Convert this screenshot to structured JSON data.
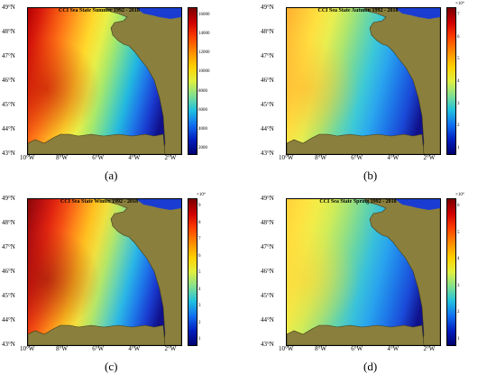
{
  "panels": [
    {
      "id": "a",
      "title": "CCI Sea State  Summer 1992 - 2018",
      "caption": "(a)",
      "colorbar_ticks": [
        "16000",
        "14000",
        "12000",
        "10000",
        "8000",
        "6000",
        "4000",
        "2000"
      ],
      "colorbar_exponent": "",
      "palette": "summer"
    },
    {
      "id": "b",
      "title": "CCI Sea State  Autumn 1992 - 2018",
      "caption": "(b)",
      "colorbar_ticks": [
        "7",
        "6",
        "5",
        "4",
        "3",
        "2",
        "1"
      ],
      "colorbar_exponent": "×10⁴",
      "palette": "autumn"
    },
    {
      "id": "c",
      "title": "CCI Sea State  Winter 1992 - 2018",
      "caption": "(c)",
      "colorbar_ticks": [
        "9",
        "8",
        "7",
        "6",
        "5",
        "4",
        "3",
        "2",
        "1"
      ],
      "colorbar_exponent": "×10⁴",
      "palette": "winter"
    },
    {
      "id": "d",
      "title": "CCI Sea State  Spring 1992 - 2018",
      "caption": "(d)",
      "colorbar_ticks": [
        "6",
        "5",
        "4",
        "3",
        "2",
        "1"
      ],
      "colorbar_exponent": "×10⁴",
      "palette": "spring"
    }
  ],
  "lat_labels": [
    "49°N",
    "48°N",
    "47°N",
    "46°N",
    "45°N",
    "44°N",
    "43°N"
  ],
  "lon_labels": [
    "10°W",
    "8°W",
    "6°W",
    "4°W",
    "2°W"
  ],
  "colors": {
    "land": "#8a7f3d",
    "border": "#000000"
  }
}
